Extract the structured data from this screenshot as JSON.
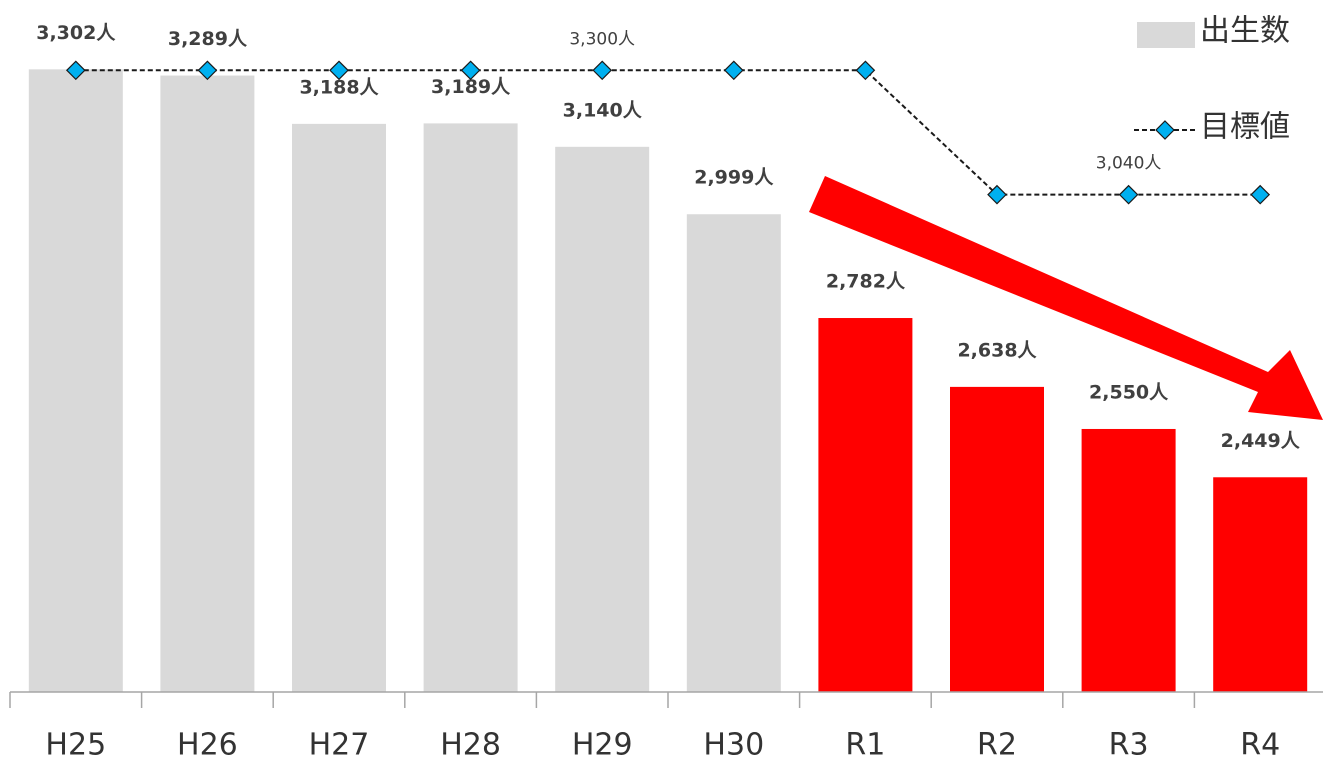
{
  "chart_data": {
    "type": "bar",
    "categories": [
      "H25",
      "H26",
      "H27",
      "H28",
      "H29",
      "H30",
      "R1",
      "R2",
      "R3",
      "R4"
    ],
    "ylim": [
      2000,
      3447
    ],
    "legend": "top-right",
    "series": [
      {
        "name": "出生数",
        "type": "bar",
        "color": "#d9d9d9",
        "colors": [
          "#d9d9d9",
          "#d9d9d9",
          "#d9d9d9",
          "#d9d9d9",
          "#d9d9d9",
          "#d9d9d9",
          "#ff0000",
          "#ff0000",
          "#ff0000",
          "#ff0000"
        ],
        "values": [
          3302,
          3289,
          3188,
          3189,
          3140,
          2999,
          2782,
          2638,
          2550,
          2449
        ],
        "value_labels": [
          "3,302人",
          "3,289人",
          "3,188人",
          "3,189人",
          "3,140人",
          "2,999人",
          "2,782人",
          "2,638人",
          "2,550人",
          "2,449人"
        ]
      },
      {
        "name": "目標値",
        "type": "line",
        "color": "#00b0f0",
        "values": [
          3300,
          3300,
          3300,
          3300,
          3300,
          3300,
          3300,
          3040,
          3040,
          3040
        ],
        "value_labels": [
          null,
          null,
          null,
          null,
          "3,300人",
          null,
          null,
          null,
          "3,040人",
          null
        ]
      }
    ]
  }
}
